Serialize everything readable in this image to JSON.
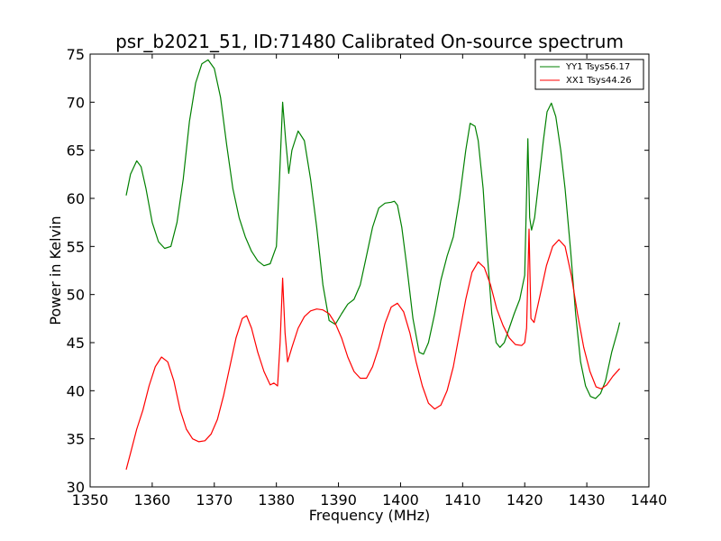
{
  "chart_data": {
    "type": "line",
    "title": "psr_b2021_51, ID:71480 Calibrated On-source spectrum",
    "xlabel": "Frequency (MHz)",
    "ylabel": "Power in Kelvin",
    "xlim": [
      1350,
      1440
    ],
    "ylim": [
      30,
      75
    ],
    "xticks": [
      1350,
      1360,
      1370,
      1380,
      1390,
      1400,
      1410,
      1420,
      1430,
      1440
    ],
    "yticks": [
      30,
      35,
      40,
      45,
      50,
      55,
      60,
      65,
      70,
      75
    ],
    "grid": false,
    "legend": "top-right",
    "series": [
      {
        "name": "YY1 Tsys56.17",
        "color": "#008000",
        "points": [
          [
            1355.8,
            60.3
          ],
          [
            1356.5,
            62.5
          ],
          [
            1357.5,
            63.9
          ],
          [
            1358.2,
            63.3
          ],
          [
            1359.0,
            61.0
          ],
          [
            1360.0,
            57.5
          ],
          [
            1361.0,
            55.5
          ],
          [
            1362.0,
            54.8
          ],
          [
            1363.0,
            55.0
          ],
          [
            1364.0,
            57.5
          ],
          [
            1365.0,
            62.0
          ],
          [
            1366.0,
            68.0
          ],
          [
            1367.0,
            72.0
          ],
          [
            1368.0,
            74.0
          ],
          [
            1369.0,
            74.4
          ],
          [
            1370.0,
            73.5
          ],
          [
            1371.0,
            70.5
          ],
          [
            1372.0,
            65.5
          ],
          [
            1373.0,
            61.0
          ],
          [
            1374.0,
            58.0
          ],
          [
            1375.0,
            56.0
          ],
          [
            1376.0,
            54.5
          ],
          [
            1377.0,
            53.5
          ],
          [
            1378.0,
            53.0
          ],
          [
            1379.0,
            53.2
          ],
          [
            1380.0,
            55.0
          ],
          [
            1380.5,
            62.0
          ],
          [
            1381.0,
            70.0
          ],
          [
            1381.5,
            66.0
          ],
          [
            1382.0,
            62.6
          ],
          [
            1382.5,
            65.0
          ],
          [
            1383.0,
            66.0
          ],
          [
            1383.5,
            67.0
          ],
          [
            1384.5,
            66.0
          ],
          [
            1385.5,
            62.0
          ],
          [
            1386.5,
            57.0
          ],
          [
            1387.5,
            51.0
          ],
          [
            1388.5,
            47.3
          ],
          [
            1389.5,
            46.9
          ],
          [
            1390.5,
            48.0
          ],
          [
            1391.5,
            49.0
          ],
          [
            1392.5,
            49.5
          ],
          [
            1393.5,
            51.0
          ],
          [
            1394.5,
            54.0
          ],
          [
            1395.5,
            57.0
          ],
          [
            1396.5,
            59.0
          ],
          [
            1397.5,
            59.5
          ],
          [
            1398.5,
            59.6
          ],
          [
            1399.0,
            59.7
          ],
          [
            1399.5,
            59.3
          ],
          [
            1400.2,
            57.0
          ],
          [
            1401.0,
            53.0
          ],
          [
            1402.0,
            47.5
          ],
          [
            1403.0,
            44.0
          ],
          [
            1403.7,
            43.8
          ],
          [
            1404.5,
            45.0
          ],
          [
            1405.5,
            48.0
          ],
          [
            1406.5,
            51.5
          ],
          [
            1407.5,
            54.0
          ],
          [
            1408.5,
            56.0
          ],
          [
            1409.5,
            60.0
          ],
          [
            1410.5,
            65.0
          ],
          [
            1411.2,
            67.8
          ],
          [
            1412.0,
            67.5
          ],
          [
            1412.5,
            66.0
          ],
          [
            1413.3,
            61.0
          ],
          [
            1414.0,
            54.0
          ],
          [
            1414.7,
            48.0
          ],
          [
            1415.4,
            45.0
          ],
          [
            1416.0,
            44.5
          ],
          [
            1416.7,
            45.0
          ],
          [
            1417.5,
            46.5
          ],
          [
            1418.3,
            48.0
          ],
          [
            1419.2,
            49.5
          ],
          [
            1420.0,
            52.0
          ],
          [
            1420.5,
            66.2
          ],
          [
            1420.8,
            58.0
          ],
          [
            1421.1,
            56.7
          ],
          [
            1421.6,
            58.0
          ],
          [
            1422.3,
            62.0
          ],
          [
            1423.0,
            66.0
          ],
          [
            1423.6,
            69.0
          ],
          [
            1424.3,
            69.9
          ],
          [
            1425.0,
            68.5
          ],
          [
            1425.8,
            65.0
          ],
          [
            1426.5,
            61.0
          ],
          [
            1427.4,
            54.5
          ],
          [
            1428.2,
            48.0
          ],
          [
            1429.0,
            43.0
          ],
          [
            1429.8,
            40.5
          ],
          [
            1430.6,
            39.4
          ],
          [
            1431.4,
            39.2
          ],
          [
            1432.2,
            39.7
          ],
          [
            1433.0,
            41.0
          ],
          [
            1434.0,
            44.0
          ],
          [
            1435.0,
            46.3
          ],
          [
            1435.3,
            47.1
          ]
        ]
      },
      {
        "name": "XX1 Tsys44.26",
        "color": "#ff0000",
        "points": [
          [
            1355.8,
            31.8
          ],
          [
            1356.5,
            33.5
          ],
          [
            1357.5,
            36.0
          ],
          [
            1358.5,
            38.0
          ],
          [
            1359.5,
            40.5
          ],
          [
            1360.5,
            42.5
          ],
          [
            1361.5,
            43.5
          ],
          [
            1362.5,
            43.0
          ],
          [
            1363.5,
            41.0
          ],
          [
            1364.5,
            38.0
          ],
          [
            1365.5,
            36.0
          ],
          [
            1366.5,
            35.0
          ],
          [
            1367.5,
            34.7
          ],
          [
            1368.5,
            34.8
          ],
          [
            1369.5,
            35.5
          ],
          [
            1370.5,
            37.0
          ],
          [
            1371.5,
            39.5
          ],
          [
            1372.5,
            42.5
          ],
          [
            1373.5,
            45.5
          ],
          [
            1374.5,
            47.5
          ],
          [
            1375.2,
            47.8
          ],
          [
            1376.0,
            46.5
          ],
          [
            1377.0,
            44.0
          ],
          [
            1378.0,
            42.0
          ],
          [
            1379.0,
            40.6
          ],
          [
            1379.6,
            40.8
          ],
          [
            1380.2,
            40.5
          ],
          [
            1380.6,
            45.0
          ],
          [
            1381.0,
            51.7
          ],
          [
            1381.4,
            46.0
          ],
          [
            1381.8,
            43.0
          ],
          [
            1382.5,
            44.5
          ],
          [
            1383.5,
            46.5
          ],
          [
            1384.5,
            47.7
          ],
          [
            1385.5,
            48.3
          ],
          [
            1386.5,
            48.5
          ],
          [
            1387.5,
            48.4
          ],
          [
            1388.5,
            48.0
          ],
          [
            1389.5,
            47.0
          ],
          [
            1390.5,
            45.5
          ],
          [
            1391.5,
            43.5
          ],
          [
            1392.5,
            42.0
          ],
          [
            1393.5,
            41.3
          ],
          [
            1394.5,
            41.3
          ],
          [
            1395.5,
            42.5
          ],
          [
            1396.5,
            44.5
          ],
          [
            1397.5,
            47.0
          ],
          [
            1398.5,
            48.7
          ],
          [
            1399.5,
            49.1
          ],
          [
            1400.5,
            48.2
          ],
          [
            1401.5,
            46.0
          ],
          [
            1402.5,
            43.0
          ],
          [
            1403.5,
            40.5
          ],
          [
            1404.5,
            38.7
          ],
          [
            1405.5,
            38.1
          ],
          [
            1406.5,
            38.5
          ],
          [
            1407.5,
            40.0
          ],
          [
            1408.5,
            42.5
          ],
          [
            1409.5,
            46.0
          ],
          [
            1410.5,
            49.5
          ],
          [
            1411.5,
            52.3
          ],
          [
            1412.5,
            53.4
          ],
          [
            1413.5,
            52.8
          ],
          [
            1414.5,
            51.0
          ],
          [
            1415.5,
            48.5
          ],
          [
            1416.5,
            46.8
          ],
          [
            1417.5,
            45.5
          ],
          [
            1418.5,
            44.8
          ],
          [
            1419.5,
            44.7
          ],
          [
            1420.0,
            45.0
          ],
          [
            1420.3,
            46.5
          ],
          [
            1420.7,
            56.8
          ],
          [
            1421.0,
            47.5
          ],
          [
            1421.5,
            47.1
          ],
          [
            1422.5,
            50.0
          ],
          [
            1423.5,
            53.0
          ],
          [
            1424.5,
            55.0
          ],
          [
            1425.5,
            55.7
          ],
          [
            1426.5,
            55.0
          ],
          [
            1427.5,
            52.0
          ],
          [
            1428.5,
            48.0
          ],
          [
            1429.5,
            44.5
          ],
          [
            1430.5,
            42.0
          ],
          [
            1431.5,
            40.4
          ],
          [
            1432.3,
            40.2
          ],
          [
            1433.2,
            40.6
          ],
          [
            1434.2,
            41.5
          ],
          [
            1435.3,
            42.3
          ]
        ]
      }
    ]
  }
}
